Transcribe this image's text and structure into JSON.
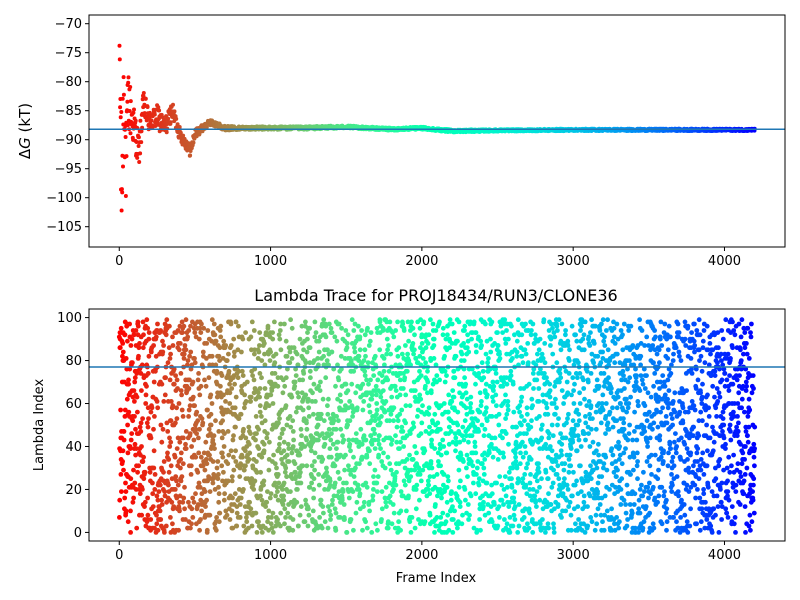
{
  "chart_data": [
    {
      "type": "scatter",
      "title": "",
      "xlabel": "",
      "ylabel_prefix": "Δ",
      "ylabel_var": "G",
      "ylabel_suffix": " (kT)",
      "xlim": [
        -200,
        4400
      ],
      "ylim": [
        -108.5,
        -68.5
      ],
      "xticks": [
        0,
        1000,
        2000,
        3000,
        4000
      ],
      "yticks": [
        -105,
        -100,
        -95,
        -90,
        -85,
        -80,
        -75,
        -70
      ],
      "ytick_labels": [
        "−105",
        "−100",
        "−95",
        "−90",
        "−85",
        "−80",
        "−75",
        "−70"
      ],
      "hline": -88.2,
      "hline_color": "#1f77b4",
      "colormap": "rainbow-reversed",
      "x_max": 4200,
      "grid": false,
      "trace": {
        "x": [
          0,
          15,
          30,
          45,
          60,
          80,
          100,
          130,
          160,
          200,
          250,
          300,
          350,
          400,
          450,
          470,
          500,
          550,
          600,
          700,
          800,
          1000,
          1200,
          1500,
          1800,
          2000,
          2200,
          2500,
          3000,
          3500,
          4000,
          4200
        ],
        "y": [
          -70,
          -100,
          -80,
          -95,
          -83,
          -86,
          -88,
          -92,
          -84,
          -87,
          -86,
          -88,
          -85,
          -89,
          -91,
          -92,
          -89,
          -88,
          -87,
          -88,
          -88,
          -88,
          -88,
          -87.8,
          -88.2,
          -88,
          -88.5,
          -88.4,
          -88.3,
          -88.3,
          -88.3,
          -88.3
        ],
        "spread": [
          12,
          12,
          10,
          8,
          6,
          4,
          3.5,
          3,
          2.5,
          2,
          2,
          1.8,
          1.5,
          1.2,
          1,
          1,
          0.8,
          0.6,
          0.5,
          0.4,
          0.3,
          0.3,
          0.3,
          0.25,
          0.25,
          0.25,
          0.25,
          0.2,
          0.2,
          0.2,
          0.2,
          0.2
        ]
      }
    },
    {
      "type": "scatter",
      "title": "Lambda Trace for PROJ18434/RUN3/CLONE36",
      "xlabel": "Frame Index",
      "ylabel": "Lambda Index",
      "xlim": [
        -200,
        4400
      ],
      "ylim": [
        -4,
        104
      ],
      "xticks": [
        0,
        1000,
        2000,
        3000,
        4000
      ],
      "yticks": [
        0,
        20,
        40,
        60,
        80,
        100
      ],
      "hline": 77,
      "hline_color": "#1f77b4",
      "colormap": "rainbow-reversed",
      "x_max": 4200,
      "y_range": [
        0,
        99
      ],
      "n_points": 4200,
      "grid": false
    }
  ]
}
